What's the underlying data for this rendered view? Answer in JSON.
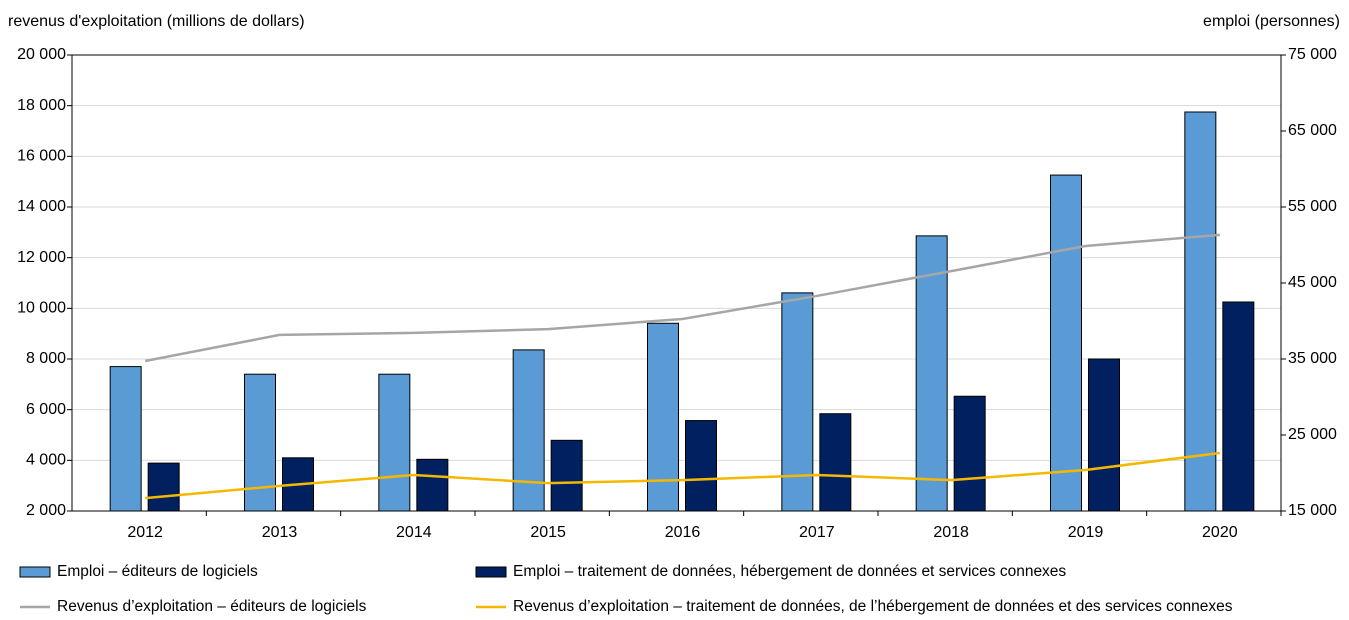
{
  "chart_data": {
    "type": "bar_line",
    "y_label": "revenus d'exploitation (millions de dollars)",
    "y2_label": "emploi (personnes)",
    "categories": [
      "2012",
      "2013",
      "2014",
      "2015",
      "2016",
      "2017",
      "2018",
      "2019",
      "2020"
    ],
    "series": [
      {
        "name": "Emploi – éditeurs de logiciels",
        "type": "bar",
        "axis": "y2",
        "color": "#5b9bd5",
        "values": [
          34000,
          33000,
          33000,
          36200,
          39700,
          43700,
          51200,
          59200,
          67500
        ]
      },
      {
        "name": "Emploi – traitement de données, hébergement de données et services connexes",
        "type": "bar",
        "axis": "y2",
        "color": "#002060",
        "values": [
          21300,
          22000,
          21800,
          24300,
          26900,
          27800,
          30100,
          35000,
          42500
        ]
      },
      {
        "name": "Revenus d’exploitation – éditeurs de logiciels",
        "type": "line",
        "axis": "y",
        "color": "#a6a6a6",
        "values": [
          7920,
          8950,
          9030,
          9180,
          9580,
          10490,
          11470,
          12460,
          12900
        ]
      },
      {
        "name": "Revenus d’exploitation – traitement de données, de l’hébergement de données et des services connexes",
        "type": "line",
        "axis": "y",
        "color": "#f5b800",
        "values": [
          2510,
          2990,
          3420,
          3100,
          3220,
          3420,
          3220,
          3620,
          4290
        ]
      }
    ],
    "ylim": [
      2000,
      20000
    ],
    "yticks": [
      {
        "value": 2000,
        "label": "2 000"
      },
      {
        "value": 4000,
        "label": "4 000"
      },
      {
        "value": 6000,
        "label": "6 000"
      },
      {
        "value": 8000,
        "label": "8 000"
      },
      {
        "value": 10000,
        "label": "10 000"
      },
      {
        "value": 12000,
        "label": "12 000"
      },
      {
        "value": 14000,
        "label": "14 000"
      },
      {
        "value": 16000,
        "label": "16 000"
      },
      {
        "value": 18000,
        "label": "18 000"
      },
      {
        "value": 20000,
        "label": "20 000"
      }
    ],
    "y2lim": [
      15000,
      75000
    ],
    "y2ticks": [
      {
        "value": 15000,
        "label": "15 000"
      },
      {
        "value": 25000,
        "label": "25 000"
      },
      {
        "value": 35000,
        "label": "35 000"
      },
      {
        "value": 45000,
        "label": "45 000"
      },
      {
        "value": 55000,
        "label": "55 000"
      },
      {
        "value": 65000,
        "label": "65 000"
      },
      {
        "value": 75000,
        "label": "75 000"
      }
    ],
    "grid": true,
    "legend": "bottom"
  }
}
